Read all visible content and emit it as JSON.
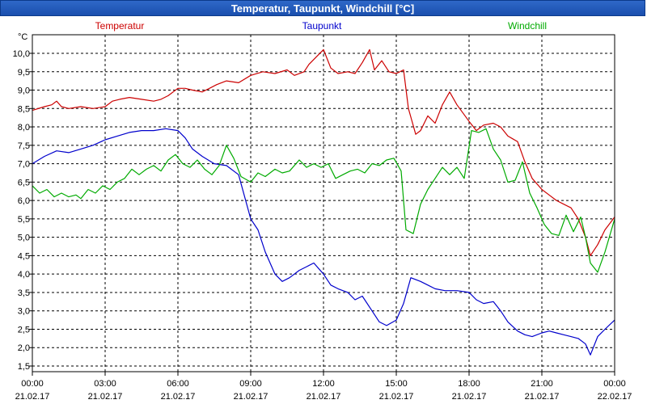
{
  "chart_data": {
    "type": "line",
    "title": "Temperatur, Taupunkt, Windchill [°C]",
    "ylabel": "°C",
    "ylim": [
      1.5,
      10.0
    ],
    "yticks": [
      "10,0",
      "9,5",
      "9,0",
      "8,5",
      "8,0",
      "7,5",
      "7,0",
      "6,5",
      "6,0",
      "5,5",
      "5,0",
      "4,5",
      "4,0",
      "3,5",
      "3,0",
      "2,5",
      "2,0",
      "1,5"
    ],
    "xlim": [
      0,
      24
    ],
    "xticks": [
      {
        "time": "00:00",
        "date": "21.02.17"
      },
      {
        "time": "03:00",
        "date": "21.02.17"
      },
      {
        "time": "06:00",
        "date": "21.02.17"
      },
      {
        "time": "09:00",
        "date": "21.02.17"
      },
      {
        "time": "12:00",
        "date": "21.02.17"
      },
      {
        "time": "15:00",
        "date": "21.02.17"
      },
      {
        "time": "18:00",
        "date": "21.02.17"
      },
      {
        "time": "21:00",
        "date": "21.02.17"
      },
      {
        "time": "00:00",
        "date": "22.02.17"
      }
    ],
    "grid": true,
    "series": [
      {
        "name": "Temperatur",
        "color": "#cc0000",
        "points": [
          [
            0,
            8.45
          ],
          [
            0.5,
            8.55
          ],
          [
            0.8,
            8.6
          ],
          [
            1,
            8.7
          ],
          [
            1.2,
            8.55
          ],
          [
            1.5,
            8.5
          ],
          [
            2,
            8.55
          ],
          [
            2.5,
            8.5
          ],
          [
            3,
            8.55
          ],
          [
            3.3,
            8.7
          ],
          [
            3.6,
            8.75
          ],
          [
            4,
            8.8
          ],
          [
            4.5,
            8.75
          ],
          [
            5,
            8.7
          ],
          [
            5.3,
            8.75
          ],
          [
            5.6,
            8.85
          ],
          [
            6,
            9.05
          ],
          [
            6.3,
            9.05
          ],
          [
            6.6,
            9.0
          ],
          [
            7,
            8.95
          ],
          [
            7.3,
            9.05
          ],
          [
            7.6,
            9.15
          ],
          [
            8,
            9.25
          ],
          [
            8.5,
            9.2
          ],
          [
            9,
            9.4
          ],
          [
            9.5,
            9.5
          ],
          [
            10,
            9.45
          ],
          [
            10.5,
            9.55
          ],
          [
            10.8,
            9.4
          ],
          [
            11.2,
            9.5
          ],
          [
            11.4,
            9.7
          ],
          [
            11.7,
            9.9
          ],
          [
            12,
            10.1
          ],
          [
            12.3,
            9.6
          ],
          [
            12.6,
            9.45
          ],
          [
            13,
            9.5
          ],
          [
            13.3,
            9.45
          ],
          [
            13.6,
            9.75
          ],
          [
            13.9,
            10.1
          ],
          [
            14.1,
            9.55
          ],
          [
            14.4,
            9.8
          ],
          [
            14.7,
            9.5
          ],
          [
            15,
            9.45
          ],
          [
            15.3,
            9.55
          ],
          [
            15.5,
            8.5
          ],
          [
            15.8,
            7.8
          ],
          [
            16,
            7.9
          ],
          [
            16.3,
            8.3
          ],
          [
            16.6,
            8.1
          ],
          [
            16.9,
            8.6
          ],
          [
            17.2,
            8.95
          ],
          [
            17.5,
            8.6
          ],
          [
            18,
            8.15
          ],
          [
            18.3,
            7.9
          ],
          [
            18.6,
            8.05
          ],
          [
            19,
            8.1
          ],
          [
            19.3,
            8.0
          ],
          [
            19.6,
            7.75
          ],
          [
            20,
            7.6
          ],
          [
            20.3,
            7.05
          ],
          [
            20.6,
            6.6
          ],
          [
            21,
            6.3
          ],
          [
            21.3,
            6.15
          ],
          [
            21.6,
            6.0
          ],
          [
            21.9,
            5.9
          ],
          [
            22.2,
            5.8
          ],
          [
            22.5,
            5.5
          ],
          [
            22.8,
            5.0
          ],
          [
            23,
            4.5
          ],
          [
            23.3,
            4.8
          ],
          [
            23.6,
            5.2
          ],
          [
            24,
            5.55
          ]
        ]
      },
      {
        "name": "Taupunkt",
        "color": "#0000cc",
        "points": [
          [
            0,
            7.0
          ],
          [
            0.5,
            7.2
          ],
          [
            1,
            7.35
          ],
          [
            1.5,
            7.3
          ],
          [
            2,
            7.4
          ],
          [
            2.5,
            7.5
          ],
          [
            3,
            7.65
          ],
          [
            3.5,
            7.75
          ],
          [
            4,
            7.85
          ],
          [
            4.5,
            7.9
          ],
          [
            5,
            7.9
          ],
          [
            5.5,
            7.95
          ],
          [
            6,
            7.9
          ],
          [
            6.3,
            7.7
          ],
          [
            6.6,
            7.4
          ],
          [
            7,
            7.2
          ],
          [
            7.5,
            7.0
          ],
          [
            8,
            6.95
          ],
          [
            8.5,
            6.7
          ],
          [
            9,
            5.5
          ],
          [
            9.3,
            5.2
          ],
          [
            9.6,
            4.6
          ],
          [
            10,
            4.0
          ],
          [
            10.3,
            3.8
          ],
          [
            10.6,
            3.9
          ],
          [
            11,
            4.1
          ],
          [
            11.3,
            4.2
          ],
          [
            11.6,
            4.3
          ],
          [
            12,
            4.0
          ],
          [
            12.3,
            3.7
          ],
          [
            12.6,
            3.6
          ],
          [
            13,
            3.5
          ],
          [
            13.3,
            3.3
          ],
          [
            13.6,
            3.4
          ],
          [
            14,
            3.0
          ],
          [
            14.3,
            2.7
          ],
          [
            14.6,
            2.6
          ],
          [
            15,
            2.75
          ],
          [
            15.3,
            3.2
          ],
          [
            15.6,
            3.9
          ],
          [
            16,
            3.8
          ],
          [
            16.3,
            3.7
          ],
          [
            16.6,
            3.6
          ],
          [
            17,
            3.55
          ],
          [
            17.5,
            3.55
          ],
          [
            18,
            3.5
          ],
          [
            18.3,
            3.3
          ],
          [
            18.6,
            3.2
          ],
          [
            19,
            3.25
          ],
          [
            19.3,
            3.0
          ],
          [
            19.6,
            2.7
          ],
          [
            20,
            2.45
          ],
          [
            20.3,
            2.35
          ],
          [
            20.6,
            2.3
          ],
          [
            21,
            2.4
          ],
          [
            21.3,
            2.45
          ],
          [
            21.6,
            2.4
          ],
          [
            21.9,
            2.35
          ],
          [
            22.2,
            2.3
          ],
          [
            22.5,
            2.25
          ],
          [
            22.8,
            2.1
          ],
          [
            23,
            1.8
          ],
          [
            23.3,
            2.3
          ],
          [
            23.6,
            2.5
          ],
          [
            24,
            2.75
          ]
        ]
      },
      {
        "name": "Windchill",
        "color": "#00aa00",
        "points": [
          [
            0,
            6.4
          ],
          [
            0.3,
            6.2
          ],
          [
            0.6,
            6.3
          ],
          [
            0.9,
            6.1
          ],
          [
            1.2,
            6.2
          ],
          [
            1.5,
            6.1
          ],
          [
            1.8,
            6.15
          ],
          [
            2,
            6.05
          ],
          [
            2.3,
            6.3
          ],
          [
            2.6,
            6.2
          ],
          [
            2.9,
            6.4
          ],
          [
            3.2,
            6.3
          ],
          [
            3.5,
            6.5
          ],
          [
            3.8,
            6.6
          ],
          [
            4.1,
            6.85
          ],
          [
            4.4,
            6.7
          ],
          [
            4.7,
            6.85
          ],
          [
            5,
            6.95
          ],
          [
            5.3,
            6.8
          ],
          [
            5.6,
            7.1
          ],
          [
            5.9,
            7.25
          ],
          [
            6.2,
            7.0
          ],
          [
            6.5,
            6.9
          ],
          [
            6.8,
            7.1
          ],
          [
            7.1,
            6.85
          ],
          [
            7.4,
            6.7
          ],
          [
            7.7,
            6.95
          ],
          [
            8,
            7.5
          ],
          [
            8.3,
            7.15
          ],
          [
            8.6,
            6.65
          ],
          [
            9,
            6.5
          ],
          [
            9.3,
            6.75
          ],
          [
            9.6,
            6.65
          ],
          [
            10,
            6.85
          ],
          [
            10.3,
            6.75
          ],
          [
            10.6,
            6.8
          ],
          [
            11,
            7.1
          ],
          [
            11.3,
            6.9
          ],
          [
            11.6,
            7.0
          ],
          [
            11.9,
            6.9
          ],
          [
            12.2,
            7.0
          ],
          [
            12.5,
            6.6
          ],
          [
            12.8,
            6.7
          ],
          [
            13.1,
            6.8
          ],
          [
            13.4,
            6.85
          ],
          [
            13.7,
            6.75
          ],
          [
            14,
            7.0
          ],
          [
            14.3,
            6.95
          ],
          [
            14.6,
            7.1
          ],
          [
            14.9,
            7.15
          ],
          [
            15.2,
            6.8
          ],
          [
            15.4,
            5.2
          ],
          [
            15.7,
            5.1
          ],
          [
            16,
            5.9
          ],
          [
            16.3,
            6.3
          ],
          [
            16.6,
            6.6
          ],
          [
            16.9,
            6.9
          ],
          [
            17.2,
            6.7
          ],
          [
            17.5,
            6.9
          ],
          [
            17.8,
            6.6
          ],
          [
            18.1,
            7.9
          ],
          [
            18.4,
            7.85
          ],
          [
            18.7,
            7.95
          ],
          [
            19,
            7.4
          ],
          [
            19.3,
            7.1
          ],
          [
            19.6,
            6.5
          ],
          [
            19.9,
            6.55
          ],
          [
            20.2,
            7.05
          ],
          [
            20.5,
            6.2
          ],
          [
            20.8,
            5.8
          ],
          [
            21.1,
            5.35
          ],
          [
            21.4,
            5.1
          ],
          [
            21.7,
            5.05
          ],
          [
            22,
            5.6
          ],
          [
            22.3,
            5.15
          ],
          [
            22.6,
            5.55
          ],
          [
            22.8,
            5.0
          ],
          [
            23,
            4.3
          ],
          [
            23.3,
            4.05
          ],
          [
            23.6,
            4.6
          ],
          [
            24,
            5.5
          ]
        ]
      }
    ]
  }
}
